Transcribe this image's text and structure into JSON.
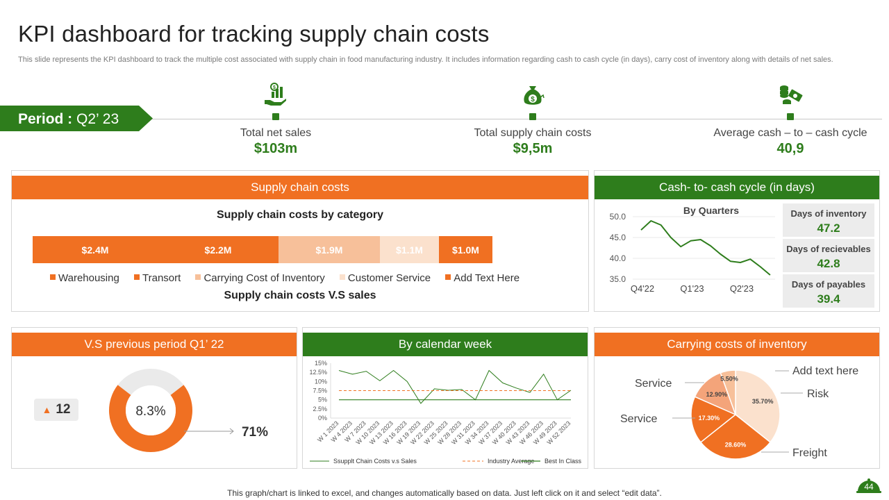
{
  "title": "KPI dashboard for tracking supply chain costs",
  "subtitle": "This slide represents  the KPI dashboard to track the multiple cost associated with supply chain in food manufacturing industry. It includes information regarding cash to cash cycle (in days), carry cost of inventory along with details of net sales.",
  "period": {
    "label": "Period :",
    "value": "Q2’ 23"
  },
  "kpis": [
    {
      "label": "Total net sales",
      "value": "$103m",
      "icon": "hand-money-icon"
    },
    {
      "label": "Total supply chain costs",
      "value": "$9,5m",
      "icon": "money-bag-icon"
    },
    {
      "label": "Average cash – to – cash cycle",
      "value": "40,9",
      "icon": "coins-cash-icon"
    }
  ],
  "supply_chain": {
    "header": "Supply chain costs",
    "chart_title": "Supply chain costs by category",
    "footer_title": "Supply chain costs V.S sales",
    "segments": [
      {
        "label": "$2.4M",
        "name": "Warehousing",
        "color": "#f07022"
      },
      {
        "label": "$2.2M",
        "name": "Transort",
        "color": "#f07022"
      },
      {
        "label": "$1.9M",
        "name": "Carrying Cost of Inventory",
        "color": "#f7c09a"
      },
      {
        "label": "$1.1M",
        "name": "Customer Service",
        "color": "#fbe1cd"
      },
      {
        "label": "$1.0M",
        "name": "Add Text Here",
        "color": "#f07022"
      }
    ]
  },
  "cash_cycle": {
    "header": "Cash- to- cash cycle (in days)",
    "chart_title": "By Quarters",
    "boxes": [
      {
        "title": "Days of inventory",
        "value": "47.2"
      },
      {
        "title": "Days of recievables",
        "value": "42.8"
      },
      {
        "title": "Days of payables",
        "value": "39.4"
      }
    ]
  },
  "vs_previous": {
    "header": "V.S previous period Q1’ 22",
    "delta": "12",
    "donut_label": "8.3%",
    "percent_label": "71%"
  },
  "calendar": {
    "header": "By calendar week"
  },
  "carrying": {
    "header": "Carrying costs of inventory"
  },
  "footer": "This graph/chart is linked to excel,  and changes automatically based on data. Just left click on it and select “edit data”.",
  "page_number": "44",
  "chart_data": [
    {
      "type": "bar",
      "stacked": true,
      "orientation": "horizontal",
      "title": "Supply chain costs by category",
      "categories": [
        "Warehousing",
        "Transort",
        "Carrying Cost of Inventory",
        "Customer Service",
        "Add Text Here"
      ],
      "values": [
        2.4,
        2.2,
        1.9,
        1.1,
        1.0
      ],
      "data_labels": [
        "$2.4M",
        "$2.2M",
        "$1.9M",
        "$1.1M",
        "$1.0M"
      ],
      "unit": "$M"
    },
    {
      "type": "line",
      "title": "By Quarters",
      "x": [
        "Q4'22",
        "Q1'23",
        "Q2'23"
      ],
      "series": [
        {
          "name": "Cash-to-cash cycle",
          "x": [
            0,
            0.2,
            0.4,
            0.6,
            0.8,
            1.0,
            1.2,
            1.4,
            1.6,
            1.8,
            2.0,
            2.2,
            2.4,
            2.6
          ],
          "values": [
            46.8,
            49.0,
            48.0,
            45.0,
            42.8,
            44.2,
            44.5,
            43.0,
            41.0,
            39.3,
            39.0,
            39.8,
            38.0,
            36.0
          ]
        }
      ],
      "yticks": [
        "35.0",
        "40.0",
        "45.0",
        "50.0"
      ],
      "ylim": [
        35,
        50
      ]
    },
    {
      "type": "pie",
      "subtype": "donut",
      "title": "V.S previous period Q1’ 22",
      "values": [
        71,
        29
      ],
      "labels": [
        "71%",
        ""
      ],
      "center_label": "8.3%",
      "colors": [
        "#f07022",
        "#eaeaea"
      ]
    },
    {
      "type": "line",
      "title": "By calendar week",
      "categories": [
        "W 1 2023",
        "W 4 2023",
        "W 7 2023",
        "W 10 2023",
        "W 13 2023",
        "W 16 2023",
        "W 19 2023",
        "W 22 2023",
        "W 25 2023",
        "W 28 2023",
        "W 31 2023",
        "W 34 2023",
        "W 37 2023",
        "W 40 2023",
        "W 43 2023",
        "W 46 2023",
        "W 49 2023",
        "W 52 2023"
      ],
      "series": [
        {
          "name": "Ssupplt Chain Costs v.s  Sales",
          "values": [
            13,
            12,
            12.8,
            10.2,
            13,
            10,
            4,
            8,
            7.6,
            7.8,
            5,
            13,
            9.6,
            8.2,
            7,
            12,
            5,
            7.6
          ]
        },
        {
          "name": "Industry Average",
          "values": [
            7.5,
            7.5,
            7.5,
            7.5,
            7.5,
            7.5,
            7.5,
            7.5,
            7.5,
            7.5,
            7.5,
            7.5,
            7.5,
            7.5,
            7.5,
            7.5,
            7.5,
            7.5
          ]
        },
        {
          "name": "Best In Class",
          "values": [
            5,
            5,
            5,
            5,
            5,
            5,
            5,
            5,
            5,
            5,
            5,
            5,
            5,
            5,
            5,
            5,
            5,
            5
          ]
        }
      ],
      "yticks": [
        "0%",
        "2.5%",
        "5%",
        "7.5%",
        "10%",
        "12.5%",
        "15%"
      ],
      "ylim": [
        0,
        15
      ]
    },
    {
      "type": "pie",
      "title": "Carrying costs of inventory",
      "values": [
        35.7,
        28.6,
        17.3,
        12.9,
        5.5
      ],
      "data_labels": [
        "35.70%",
        "28.60%",
        "17.30%",
        "12.90%",
        "5.50%"
      ],
      "colors": [
        "#fbe1cd",
        "#f07022",
        "#f07022",
        "#f4a47a",
        "#f7c09a"
      ],
      "callouts": [
        "Add text here",
        "Risk",
        "Freight",
        "Service",
        "Service"
      ]
    }
  ]
}
